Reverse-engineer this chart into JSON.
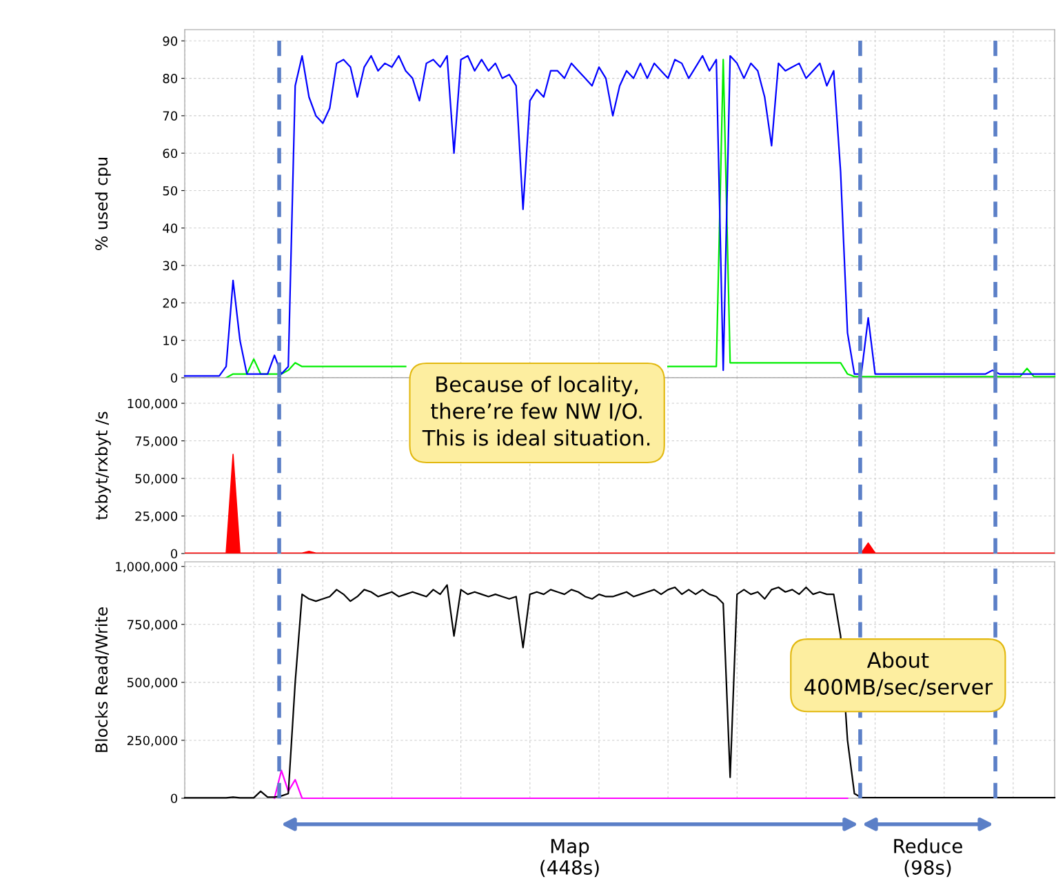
{
  "chart_data": [
    {
      "type": "line",
      "ylabel": "% used cpu",
      "categories": [
        null,
        null,
        null,
        null,
        null,
        null,
        null,
        null,
        null,
        null,
        null,
        null,
        null,
        null,
        null,
        null,
        null,
        null,
        null,
        null,
        null,
        null,
        null,
        null,
        null,
        null,
        null,
        null,
        null,
        null,
        null,
        null,
        null,
        null,
        null,
        null,
        null,
        null,
        null,
        null,
        null,
        null,
        null,
        null,
        null,
        null,
        null,
        null,
        null,
        null,
        null,
        null,
        null,
        null,
        null,
        null,
        null,
        null,
        null,
        null,
        null,
        null,
        null,
        null,
        null,
        null,
        null,
        null,
        null,
        null,
        null,
        null,
        null,
        null,
        null,
        null,
        null,
        null,
        null,
        null,
        null,
        null,
        null,
        null,
        null,
        null,
        null,
        null,
        null,
        null,
        null,
        null,
        null,
        null,
        null,
        null,
        null,
        null,
        null,
        null,
        null,
        null,
        null,
        null,
        null,
        null,
        null,
        null,
        null,
        null,
        null,
        null,
        null,
        null,
        null,
        null,
        null,
        null,
        null,
        null,
        null,
        null,
        null,
        null,
        null,
        null,
        null
      ],
      "series": [
        {
          "color": "#0000ff",
          "values": [
            0.5,
            0.5,
            0.5,
            0.5,
            0.5,
            0.5,
            3,
            26,
            10,
            1,
            1,
            1,
            1,
            6,
            1,
            3,
            78,
            86,
            75,
            70,
            68,
            72,
            84,
            85,
            83,
            75,
            83,
            86,
            82,
            84,
            83,
            86,
            82,
            80,
            74,
            84,
            85,
            83,
            86,
            60,
            85,
            86,
            82,
            85,
            82,
            84,
            80,
            81,
            78,
            45,
            74,
            77,
            75,
            82,
            82,
            80,
            84,
            82,
            80,
            78,
            83,
            80,
            70,
            78,
            82,
            80,
            84,
            80,
            84,
            82,
            80,
            85,
            84,
            80,
            83,
            86,
            82,
            85,
            2,
            86,
            84,
            80,
            84,
            82,
            75,
            62,
            84,
            82,
            83,
            84,
            80,
            82,
            84,
            78,
            82,
            55,
            12,
            1,
            1,
            16,
            1,
            1,
            1,
            1,
            1,
            1,
            1,
            1,
            1,
            1,
            1,
            1,
            1,
            1,
            1,
            1,
            1,
            2,
            1,
            1,
            1,
            1,
            1,
            1,
            1,
            1,
            1
          ]
        },
        {
          "color": "#00ee00",
          "values": [
            null,
            null,
            null,
            null,
            null,
            null,
            0,
            1,
            1,
            1,
            5,
            1,
            1,
            1,
            1,
            2,
            4,
            3,
            3,
            3,
            3,
            3,
            3,
            3,
            3,
            3,
            3,
            3,
            3,
            3,
            3,
            3,
            3,
            null,
            null,
            null,
            null,
            null,
            null,
            null,
            null,
            null,
            null,
            null,
            null,
            null,
            null,
            null,
            null,
            null,
            null,
            null,
            null,
            null,
            null,
            null,
            null,
            null,
            null,
            null,
            null,
            null,
            null,
            null,
            null,
            null,
            null,
            null,
            null,
            null,
            3,
            3,
            3,
            3,
            3,
            3,
            3,
            3,
            85,
            4,
            4,
            4,
            4,
            4,
            4,
            4,
            4,
            4,
            4,
            4,
            4,
            4,
            4,
            4,
            4,
            4,
            1,
            0.3,
            0.3,
            0.3,
            0.3,
            0.3,
            0.3,
            0.3,
            0.3,
            0.3,
            0.3,
            0.3,
            0.3,
            0.3,
            0.3,
            0.3,
            0.3,
            0.3,
            0.3,
            0.3,
            0.3,
            0.3,
            0.3,
            0.3,
            0.3,
            0.3,
            2.5,
            0.3,
            0.3,
            0.3,
            0.3
          ]
        }
      ],
      "ylim": [
        0,
        93
      ],
      "yticks": [
        0,
        10,
        20,
        30,
        40,
        50,
        60,
        70,
        80,
        90
      ],
      "grid": true,
      "tick_labels": "y"
    },
    {
      "type": "area",
      "ylabel": "txbyt/rxbyt /s",
      "categories": [
        null,
        null,
        null,
        null,
        null,
        null,
        null,
        null,
        null,
        null,
        null,
        null,
        null,
        null,
        null,
        null,
        null,
        null,
        null,
        null,
        null,
        null,
        null,
        null,
        null,
        null,
        null,
        null,
        null,
        null,
        null,
        null,
        null,
        null,
        null,
        null,
        null,
        null,
        null,
        null,
        null,
        null,
        null,
        null,
        null,
        null,
        null,
        null,
        null,
        null,
        null,
        null,
        null,
        null,
        null,
        null,
        null,
        null,
        null,
        null,
        null,
        null,
        null,
        null,
        null,
        null,
        null,
        null,
        null,
        null,
        null,
        null,
        null,
        null,
        null,
        null,
        null,
        null,
        null,
        null,
        null,
        null,
        null,
        null,
        null,
        null,
        null,
        null,
        null,
        null,
        null,
        null,
        null,
        null,
        null,
        null,
        null,
        null,
        null,
        null,
        null,
        null,
        null,
        null,
        null,
        null,
        null,
        null,
        null,
        null,
        null,
        null,
        null,
        null,
        null,
        null,
        null,
        null,
        null,
        null,
        null,
        null,
        null,
        null,
        null,
        null,
        null
      ],
      "series": [
        {
          "color": "#ff0000",
          "values": [
            300,
            300,
            300,
            300,
            300,
            300,
            300,
            66000,
            300,
            300,
            300,
            300,
            300,
            300,
            300,
            300,
            300,
            300,
            1500,
            300,
            300,
            300,
            300,
            300,
            300,
            300,
            300,
            300,
            300,
            300,
            300,
            300,
            300,
            300,
            300,
            300,
            300,
            300,
            300,
            300,
            300,
            300,
            300,
            300,
            300,
            300,
            300,
            300,
            300,
            300,
            300,
            300,
            300,
            300,
            300,
            300,
            300,
            300,
            300,
            300,
            300,
            300,
            300,
            300,
            300,
            300,
            300,
            300,
            300,
            300,
            300,
            300,
            300,
            300,
            300,
            300,
            300,
            300,
            300,
            300,
            300,
            300,
            300,
            300,
            300,
            300,
            300,
            300,
            300,
            300,
            300,
            300,
            300,
            300,
            300,
            300,
            300,
            300,
            300,
            7000,
            300,
            300,
            300,
            300,
            300,
            300,
            300,
            300,
            300,
            300,
            300,
            300,
            300,
            300,
            300,
            300,
            300,
            300,
            300,
            300,
            300,
            300,
            300,
            300,
            300,
            300,
            300
          ]
        }
      ],
      "ylim": [
        0,
        117000
      ],
      "yticks": [
        0,
        {
          "value": 25000,
          "label": "25,000"
        },
        {
          "value": 50000,
          "label": "50,000"
        },
        {
          "value": 75000,
          "label": "75,000"
        },
        {
          "value": 100000,
          "label": "100,000"
        }
      ],
      "grid": true,
      "tick_labels": "y",
      "annotations": [
        "Because of locality,\nthere’re few NW I/O.\nThis is ideal situation."
      ]
    },
    {
      "type": "line",
      "ylabel": "Blocks Read/Write",
      "categories": [
        null,
        null,
        null,
        null,
        null,
        null,
        null,
        null,
        null,
        null,
        null,
        null,
        null,
        null,
        null,
        null,
        null,
        null,
        null,
        null,
        null,
        null,
        null,
        null,
        null,
        null,
        null,
        null,
        null,
        null,
        null,
        null,
        null,
        null,
        null,
        null,
        null,
        null,
        null,
        null,
        null,
        null,
        null,
        null,
        null,
        null,
        null,
        null,
        null,
        null,
        null,
        null,
        null,
        null,
        null,
        null,
        null,
        null,
        null,
        null,
        null,
        null,
        null,
        null,
        null,
        null,
        null,
        null,
        null,
        null,
        null,
        null,
        null,
        null,
        null,
        null,
        null,
        null,
        null,
        null,
        null,
        null,
        null,
        null,
        null,
        null,
        null,
        null,
        null,
        null,
        null,
        null,
        null,
        null,
        null,
        null,
        null,
        null,
        null,
        null,
        null,
        null,
        null,
        null,
        null,
        null,
        null,
        null,
        null,
        null,
        null,
        null,
        null,
        null,
        null,
        null,
        null,
        null,
        null,
        null,
        null,
        null,
        null,
        null,
        null,
        null,
        null
      ],
      "series": [
        {
          "color": "#000000",
          "values": [
            2000,
            2000,
            2000,
            2000,
            2000,
            2000,
            2000,
            5000,
            2000,
            2000,
            2000,
            30000,
            5000,
            5000,
            10000,
            20000,
            500000,
            880000,
            860000,
            850000,
            860000,
            870000,
            900000,
            880000,
            850000,
            870000,
            900000,
            890000,
            870000,
            880000,
            890000,
            870000,
            880000,
            890000,
            880000,
            870000,
            900000,
            880000,
            920000,
            700000,
            900000,
            880000,
            890000,
            880000,
            870000,
            880000,
            870000,
            860000,
            870000,
            650000,
            880000,
            890000,
            880000,
            900000,
            890000,
            880000,
            900000,
            890000,
            870000,
            860000,
            880000,
            870000,
            870000,
            880000,
            890000,
            870000,
            880000,
            890000,
            900000,
            880000,
            900000,
            910000,
            880000,
            900000,
            880000,
            900000,
            880000,
            870000,
            840000,
            90000,
            880000,
            900000,
            880000,
            890000,
            860000,
            900000,
            910000,
            890000,
            900000,
            880000,
            910000,
            880000,
            890000,
            880000,
            880000,
            700000,
            250000,
            20000,
            3000,
            3000,
            3000,
            3000,
            3000,
            3000,
            3000,
            3000,
            3000,
            3000,
            3000,
            3000,
            3000,
            3000,
            3000,
            3000,
            3000,
            3000,
            3000,
            3000,
            3000,
            3000,
            3000,
            3000,
            3000,
            3000,
            3000,
            3000,
            3000
          ]
        },
        {
          "color": "#ff00ff",
          "values": [
            null,
            null,
            null,
            null,
            null,
            null,
            null,
            null,
            null,
            null,
            null,
            null,
            null,
            0,
            120000,
            30000,
            80000,
            0,
            0,
            0,
            0,
            0,
            0,
            0,
            0,
            0,
            0,
            0,
            0,
            0,
            0,
            0,
            0,
            0,
            0,
            0,
            0,
            0,
            0,
            0,
            0,
            0,
            0,
            0,
            0,
            0,
            0,
            0,
            0,
            0,
            0,
            0,
            0,
            0,
            0,
            0,
            0,
            0,
            0,
            0,
            0,
            0,
            0,
            0,
            0,
            0,
            0,
            0,
            0,
            0,
            0,
            0,
            0,
            0,
            0,
            0,
            0,
            0,
            0,
            0,
            0,
            0,
            0,
            0,
            0,
            0,
            0,
            0,
            0,
            0,
            0,
            0,
            0,
            0,
            0,
            0,
            0,
            null,
            null,
            null,
            null,
            null,
            null,
            null,
            null,
            null,
            null,
            null,
            null,
            null,
            null,
            null,
            null,
            null,
            null,
            null,
            null,
            null,
            null,
            null,
            null,
            null,
            null,
            null,
            null,
            null,
            null
          ]
        }
      ],
      "ylim": [
        0,
        1020000
      ],
      "yticks": [
        0,
        {
          "value": 250000,
          "label": "250,000"
        },
        {
          "value": 500000,
          "label": "500,000"
        },
        {
          "value": 750000,
          "label": "750,000"
        },
        {
          "value": 1000000,
          "label": "1,000,000"
        }
      ],
      "grid": true,
      "tick_labels": "y",
      "annotations": [
        "About\n400MB/sec/server",
        "Map\n(448s)",
        "Reduce\n(98s)"
      ]
    }
  ]
}
